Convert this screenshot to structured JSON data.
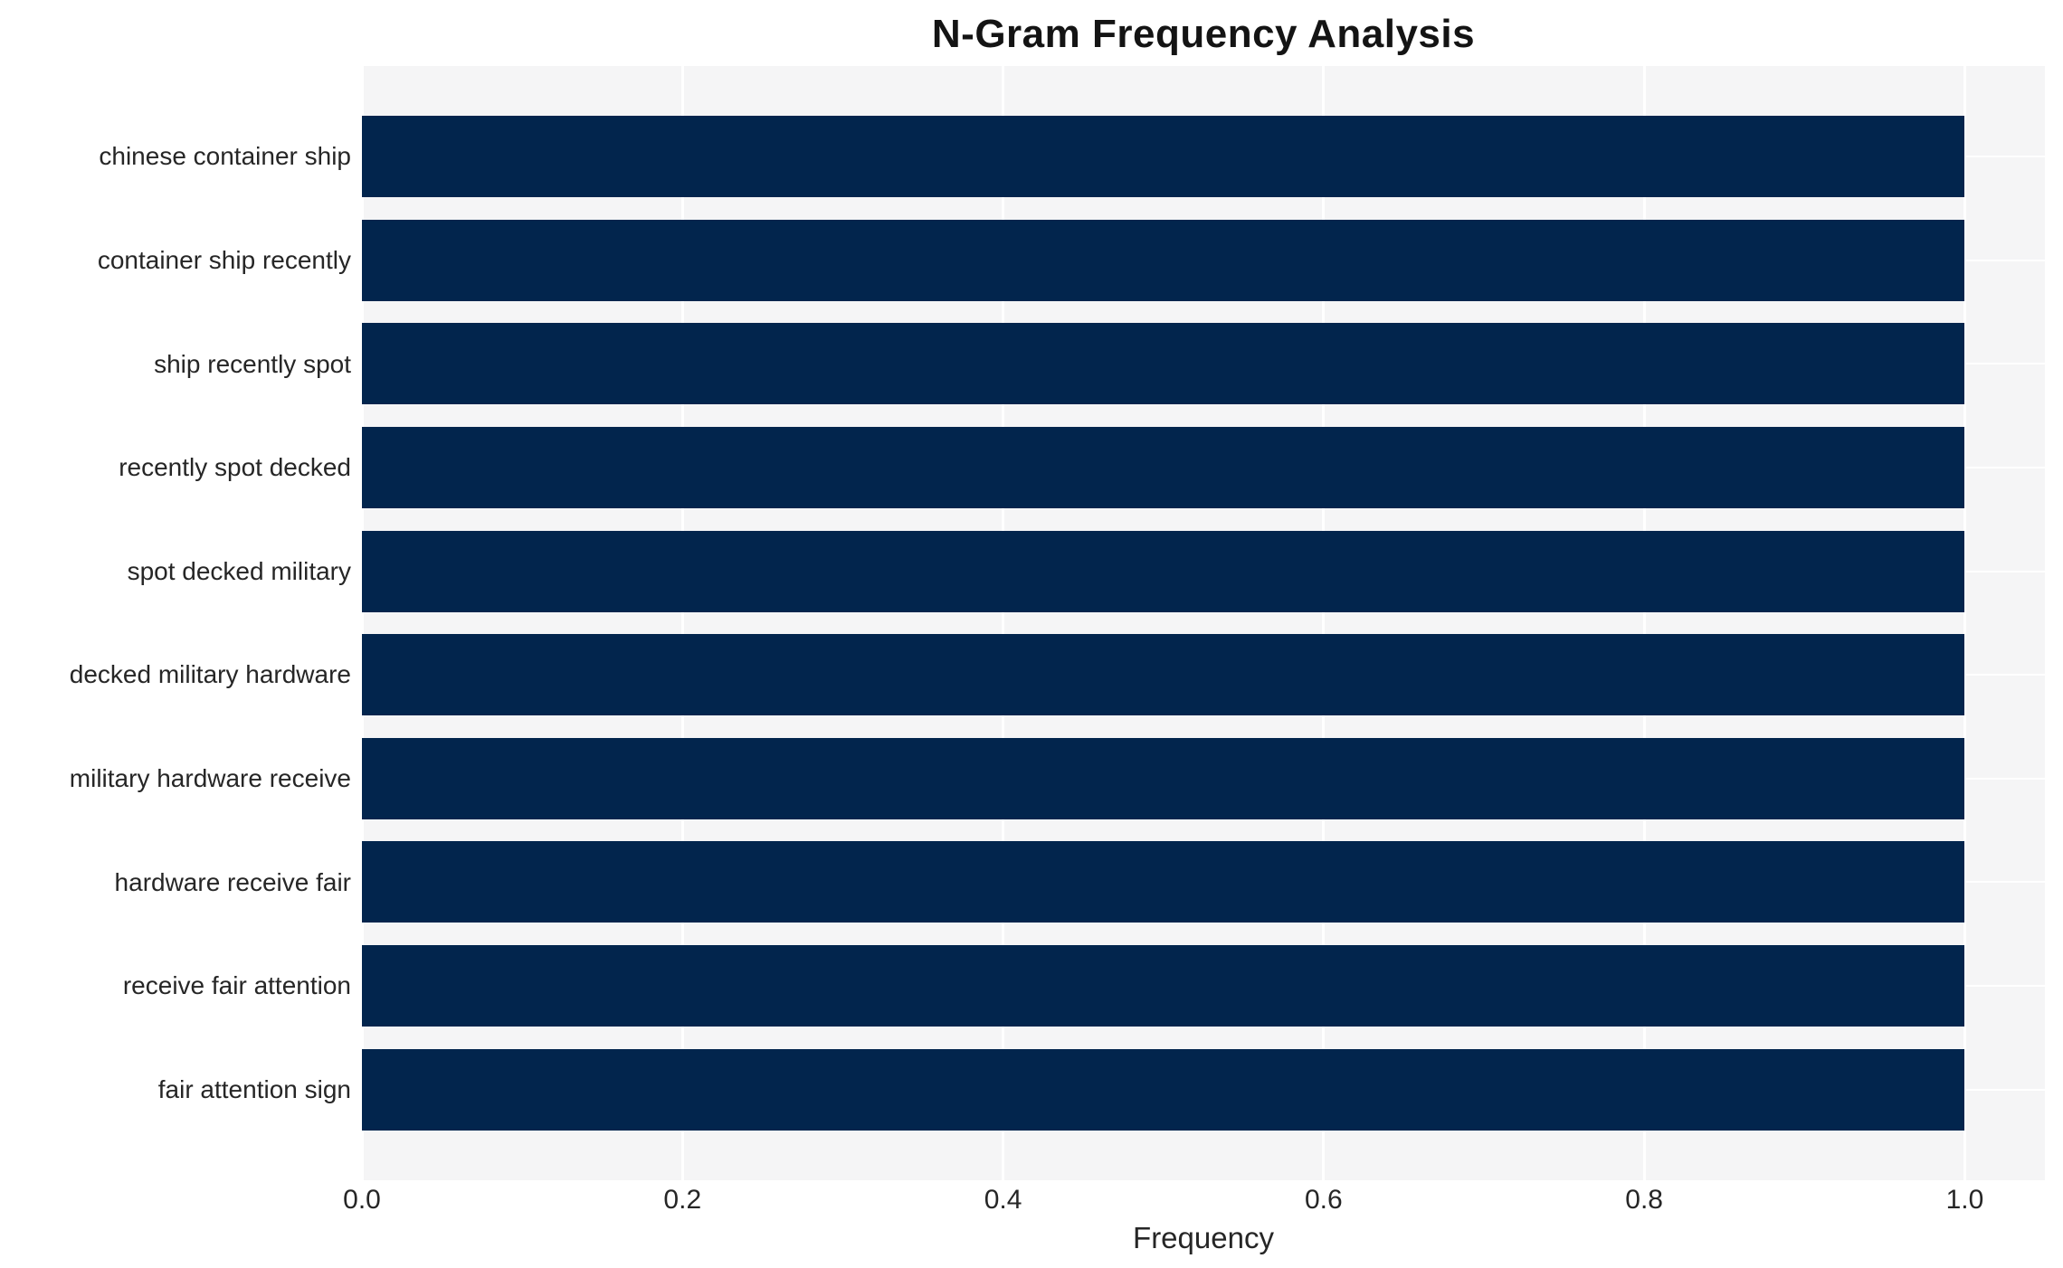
{
  "title": "N-Gram Frequency Analysis",
  "chart_data": {
    "type": "bar",
    "orientation": "horizontal",
    "title": "N-Gram Frequency Analysis",
    "categories": [
      "chinese container ship",
      "container ship recently",
      "ship recently spot",
      "recently spot decked",
      "spot decked military",
      "decked military hardware",
      "military hardware receive",
      "hardware receive fair",
      "receive fair attention",
      "fair attention sign"
    ],
    "values": [
      1.0,
      1.0,
      1.0,
      1.0,
      1.0,
      1.0,
      1.0,
      1.0,
      1.0,
      1.0
    ],
    "xlabel": "Frequency",
    "ylabel": "",
    "xlim": [
      0,
      1.05
    ],
    "xticks": [
      0.0,
      0.2,
      0.4,
      0.6,
      0.8,
      1.0
    ],
    "xtick_labels": [
      "0.0",
      "0.2",
      "0.4",
      "0.6",
      "0.8",
      "1.0"
    ],
    "grid": true,
    "legend_visible": false,
    "colors": {
      "bar": "#02254d",
      "plot_background": "#f5f5f6",
      "figure_background": "#ffffff",
      "grid_line": "#ffffff",
      "tick_text": "#262626",
      "title_text": "#141414"
    }
  }
}
